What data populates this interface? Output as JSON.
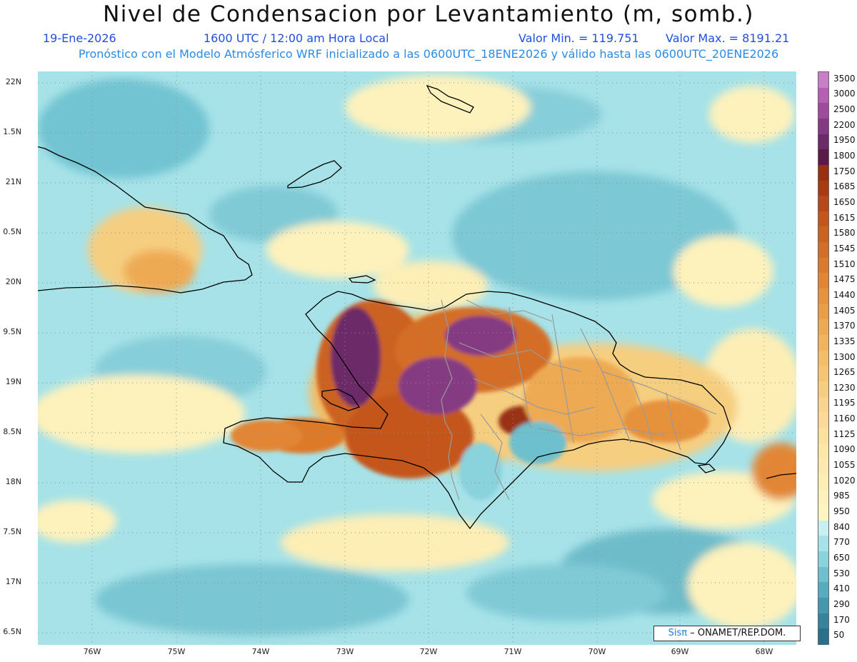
{
  "header": {
    "title": "Nivel de Condensacion por Levantamiento (m, somb.)",
    "date": "19-Ene-2026",
    "time": "1600 UTC / 12:00 am Hora Local",
    "min_label": "Valor Min. = 119.751",
    "max_label": "Valor Max. = 8191.21",
    "model_line": "Pronóstico con el Modelo Atmósferico WRF inicializado a las 0600UTC_18ENE2026 y válido hasta las  0600UTC_20ENE2026"
  },
  "axes": {
    "lat_labels": [
      "22N",
      "1.5N",
      "21N",
      "0.5N",
      "20N",
      "9.5N",
      "19N",
      "8.5N",
      "18N",
      "7.5N",
      "17N",
      "6.5N"
    ],
    "lon_labels": [
      "76W",
      "75W",
      "74W",
      "73W",
      "72W",
      "71W",
      "70W",
      "69W",
      "68W"
    ]
  },
  "legend": {
    "levels": [
      "3500",
      "3000",
      "2500",
      "2200",
      "1950",
      "1800",
      "1750",
      "1685",
      "1650",
      "1615",
      "1580",
      "1545",
      "1510",
      "1475",
      "1440",
      "1405",
      "1370",
      "1335",
      "1300",
      "1265",
      "1230",
      "1195",
      "1160",
      "1125",
      "1090",
      "1055",
      "1020",
      "985",
      "950",
      "840",
      "770",
      "650",
      "530",
      "410",
      "290",
      "170",
      "50"
    ],
    "colors": [
      "#c87fc8",
      "#b45fb4",
      "#9c4c9a",
      "#843a82",
      "#6c2a68",
      "#5a1a48",
      "#9a3012",
      "#a83a14",
      "#b84818",
      "#c4561c",
      "#cc6220",
      "#d46e26",
      "#dc7a2c",
      "#e28634",
      "#e6923e",
      "#ea9e48",
      "#eeaa52",
      "#f0b45c",
      "#f2be68",
      "#f4c674",
      "#f6ce80",
      "#f8d48c",
      "#fada96",
      "#fbe0a0",
      "#fce6a8",
      "#fdeab0",
      "#fdeeb6",
      "#fef2bc",
      "#fef6c0",
      "#c8f0f2",
      "#a6e2e8",
      "#8ad2dc",
      "#6ec0ce",
      "#56adbf",
      "#4498ae",
      "#36849c",
      "#2a7088"
    ]
  },
  "credit": {
    "brand": "Sisπ",
    "org": "– ONAMET/REP.DOM."
  }
}
